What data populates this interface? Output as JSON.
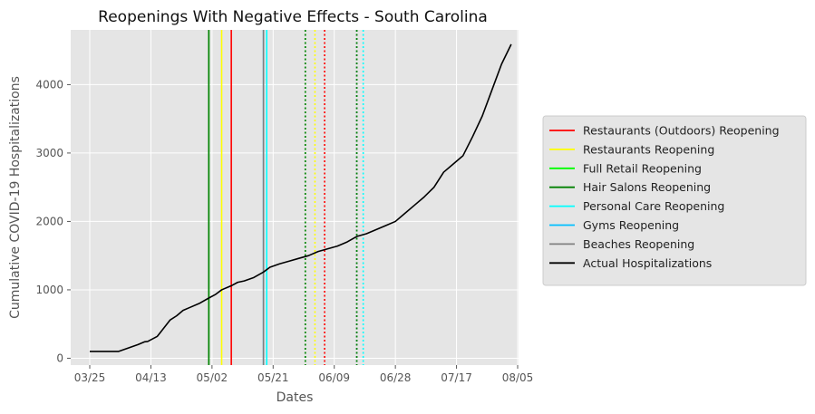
{
  "chart_data": {
    "type": "line",
    "title": "Reopenings With Negative Effects - South Carolina",
    "xlabel": "Dates",
    "ylabel": "Cumulative COVID-19 Hospitalizations",
    "x_tick_labels": [
      "03/25",
      "04/13",
      "05/02",
      "05/21",
      "06/09",
      "06/28",
      "07/17",
      "08/05"
    ],
    "y_ticks": [
      0,
      1000,
      2000,
      3000,
      4000
    ],
    "ylim": [
      -100,
      4800
    ],
    "grid": true,
    "legend_position": "right",
    "series": [
      {
        "name": "Actual Hospitalizations",
        "color": "#000000",
        "points": [
          [
            "03/25",
            100
          ],
          [
            "03/28",
            100
          ],
          [
            "03/31",
            100
          ],
          [
            "04/03",
            100
          ],
          [
            "04/06",
            150
          ],
          [
            "04/09",
            200
          ],
          [
            "04/11",
            240
          ],
          [
            "04/12",
            245
          ],
          [
            "04/15",
            320
          ],
          [
            "04/16",
            380
          ],
          [
            "04/19",
            560
          ],
          [
            "04/21",
            620
          ],
          [
            "04/23",
            700
          ],
          [
            "04/25",
            740
          ],
          [
            "04/28",
            800
          ],
          [
            "05/01",
            880
          ],
          [
            "05/03",
            930
          ],
          [
            "05/05",
            1000
          ],
          [
            "05/08",
            1060
          ],
          [
            "05/10",
            1110
          ],
          [
            "05/12",
            1130
          ],
          [
            "05/15",
            1180
          ],
          [
            "05/18",
            1260
          ],
          [
            "05/20",
            1330
          ],
          [
            "05/23",
            1380
          ],
          [
            "05/26",
            1420
          ],
          [
            "05/29",
            1460
          ],
          [
            "06/01",
            1500
          ],
          [
            "06/04",
            1560
          ],
          [
            "06/07",
            1600
          ],
          [
            "06/10",
            1640
          ],
          [
            "06/13",
            1700
          ],
          [
            "06/16",
            1780
          ],
          [
            "06/19",
            1820
          ],
          [
            "06/22",
            1880
          ],
          [
            "06/25",
            1940
          ],
          [
            "06/28",
            2000
          ],
          [
            "07/01",
            2120
          ],
          [
            "07/04",
            2240
          ],
          [
            "07/07",
            2360
          ],
          [
            "07/10",
            2500
          ],
          [
            "07/13",
            2720
          ],
          [
            "07/16",
            2840
          ],
          [
            "07/19",
            2960
          ],
          [
            "07/22",
            3240
          ],
          [
            "07/25",
            3540
          ],
          [
            "07/28",
            3920
          ],
          [
            "07/31",
            4300
          ],
          [
            "08/03",
            4590
          ]
        ]
      }
    ],
    "reopening_lines": [
      {
        "name": "Restaurants (Outdoors) Reopening",
        "color": "#ff0000",
        "style": "solid",
        "date": "05/08"
      },
      {
        "name": "Restaurants Reopening",
        "color": "#ffff00",
        "style": "solid",
        "date": "05/05"
      },
      {
        "name": "Full Retail Reopening",
        "color": "#00ff00",
        "style": "solid",
        "date": "05/01"
      },
      {
        "name": "Hair Salons Reopening",
        "color": "#008000",
        "style": "solid",
        "date": "05/01"
      },
      {
        "name": "Personal Care Reopening",
        "color": "#00ffff",
        "style": "solid",
        "date": "05/19"
      },
      {
        "name": "Gyms Reopening",
        "color": "#00bfff",
        "style": "solid",
        "date": "05/18"
      },
      {
        "name": "Beaches Reopening",
        "color": "#808080",
        "style": "solid",
        "date": "05/18"
      },
      {
        "name": "Full Retail Reopening",
        "color": "#00ff00",
        "style": "dotted",
        "date": "05/31"
      },
      {
        "name": "Hair Salons Reopening",
        "color": "#008000",
        "style": "dotted",
        "date": "05/31"
      },
      {
        "name": "Restaurants Reopening",
        "color": "#ffff00",
        "style": "dotted",
        "date": "06/03"
      },
      {
        "name": "Restaurants (Outdoors) Reopening",
        "color": "#ff0000",
        "style": "dotted",
        "date": "06/06"
      },
      {
        "name": "Gyms Reopening",
        "color": "#00bfff",
        "style": "dotted",
        "date": "06/16"
      },
      {
        "name": "Beaches Reopening",
        "color": "#808080",
        "style": "dotted",
        "date": "06/16"
      },
      {
        "name": "Hair Salons Reopening",
        "color": "#008000",
        "style": "dotted",
        "date": "06/16"
      },
      {
        "name": "Personal Care Reopening",
        "color": "#00ffff",
        "style": "dotted",
        "date": "06/18"
      }
    ],
    "legend": [
      {
        "label": "Restaurants (Outdoors) Reopening",
        "color": "#ff0000"
      },
      {
        "label": "Restaurants Reopening",
        "color": "#ffff00"
      },
      {
        "label": "Full Retail Reopening",
        "color": "#00ff00"
      },
      {
        "label": "Hair Salons Reopening",
        "color": "#008000"
      },
      {
        "label": "Personal Care Reopening",
        "color": "#00ffff"
      },
      {
        "label": "Gyms Reopening",
        "color": "#00bfff"
      },
      {
        "label": "Beaches Reopening",
        "color": "#808080"
      },
      {
        "label": "Actual Hospitalizations",
        "color": "#000000"
      }
    ]
  }
}
